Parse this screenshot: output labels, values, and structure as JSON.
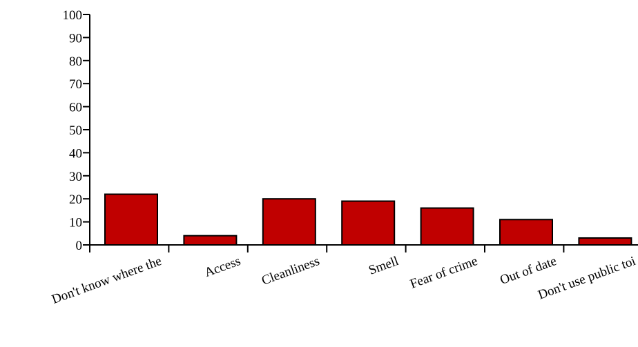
{
  "chart_data": {
    "type": "bar",
    "categories": [
      "Don't know where the",
      "Access",
      "Cleanliness",
      "Smell",
      "Fear of crime",
      "Out of date",
      "Don't use public toi"
    ],
    "values": [
      22,
      4,
      20,
      19,
      16,
      11,
      3
    ],
    "title": "",
    "xlabel": "",
    "ylabel": "",
    "ylim": [
      0,
      100
    ],
    "yticks": [
      "0",
      "10",
      "20",
      "30",
      "40",
      "50",
      "60",
      "70",
      "80",
      "90",
      "100"
    ],
    "grid": false,
    "legend": "none",
    "bar_color": "#c00000",
    "axis_color": "#000000"
  }
}
